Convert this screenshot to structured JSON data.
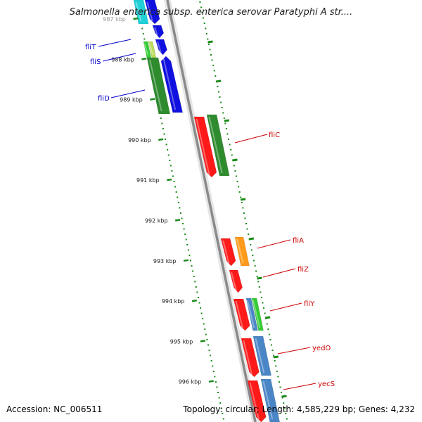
{
  "title": "Salmonella enterica subsp. enterica serovar Paratyphi A str....",
  "footer": {
    "accession": "Accession: NC_006511",
    "summary": "Topology: circular; Length: 4,585,229 bp; Genes: 4,232"
  },
  "scale_labels": [
    "987 kbp",
    "988 kbp",
    "989 kbp",
    "990 kbp",
    "991 kbp",
    "992 kbp",
    "993 kbp",
    "994 kbp",
    "995 kbp",
    "996 kbp"
  ],
  "gene_labels": {
    "left": [
      "fliT",
      "fliS",
      "fliD"
    ],
    "right": [
      "fliC",
      "fliA",
      "fliZ",
      "fliY",
      "yedO",
      "yecS"
    ]
  },
  "colors": {
    "backbone": "#888888",
    "ticks": "#1a8a1a",
    "left_label": "#0000cc",
    "right_label": "#cc0000",
    "red": "#ff1a1a",
    "dark_green": "#2e8b2e",
    "blue": "#1010e0",
    "orange": "#ff9a1a",
    "steel_blue": "#4a86c6",
    "cyan": "#20d0d8",
    "bright_green": "#33cc33",
    "yellow_green": "#b8dc5a"
  }
}
